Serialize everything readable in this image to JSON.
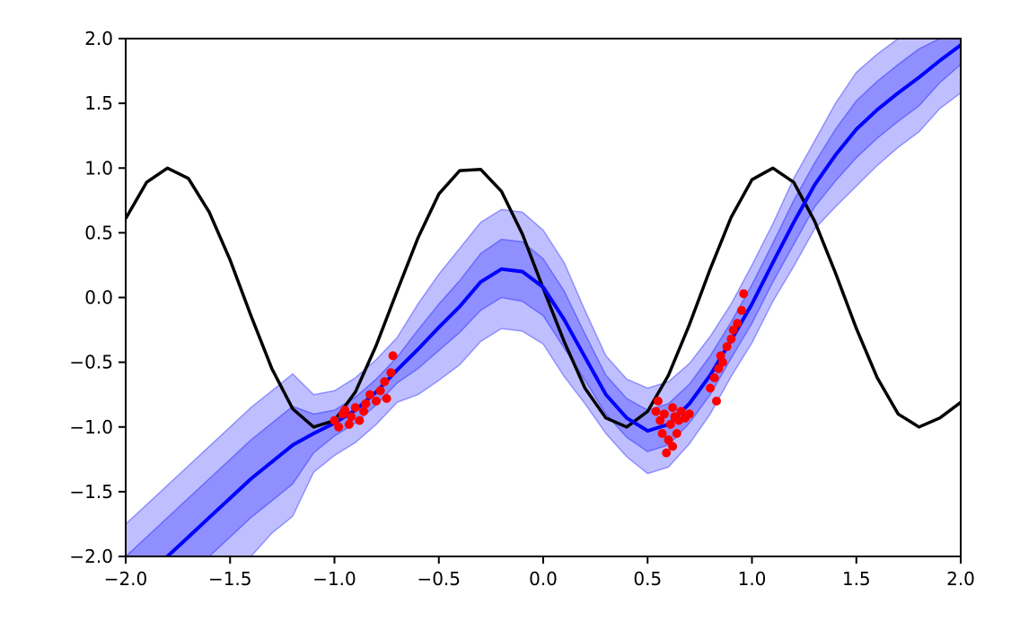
{
  "chart_data": {
    "type": "line",
    "title": "",
    "xlabel": "",
    "ylabel": "",
    "xlim": [
      -2.0,
      2.0
    ],
    "ylim": [
      -2.0,
      2.0
    ],
    "grid": false,
    "x_ticks": [
      -2.0,
      -1.5,
      -1.0,
      -0.5,
      0.0,
      0.5,
      1.0,
      1.5,
      2.0
    ],
    "y_ticks": [
      -2.0,
      -1.5,
      -1.0,
      -0.5,
      0.0,
      0.5,
      1.0,
      1.5,
      2.0
    ],
    "x_tick_labels": [
      "−2.0",
      "−1.5",
      "−1.0",
      "−0.5",
      "0.0",
      "0.5",
      "1.0",
      "1.5",
      "2.0"
    ],
    "y_tick_labels": [
      "−2.0",
      "−1.5",
      "−1.0",
      "−0.5",
      "0.0",
      "0.5",
      "1.0",
      "1.5",
      "2.0"
    ],
    "colors": {
      "true_function": "#000000",
      "predictive_mean": "#0000ff",
      "uncertainty_band": "#0000ff",
      "observations": "#ff0000"
    },
    "series": [
      {
        "kind": "line",
        "color": "#000000",
        "x": [
          -2.0,
          -1.9,
          -1.8,
          -1.7,
          -1.6,
          -1.5,
          -1.4,
          -1.3,
          -1.2,
          -1.1,
          -1.0,
          -0.9,
          -0.8,
          -0.7,
          -0.6,
          -0.5,
          -0.4,
          -0.3,
          -0.2,
          -0.1,
          0.0,
          0.1,
          0.2,
          0.3,
          0.4,
          0.5,
          0.6,
          0.7,
          0.8,
          0.9,
          1.0,
          1.1,
          1.2,
          1.3,
          1.4,
          1.5,
          1.6,
          1.7,
          1.8,
          1.9,
          2.0
        ],
        "y": [
          0.61,
          0.89,
          1.0,
          0.92,
          0.66,
          0.29,
          -0.14,
          -0.55,
          -0.86,
          -1.0,
          -0.95,
          -0.73,
          -0.37,
          0.05,
          0.46,
          0.8,
          0.98,
          0.99,
          0.82,
          0.49,
          0.07,
          -0.34,
          -0.7,
          -0.93,
          -1.0,
          -0.88,
          -0.6,
          -0.21,
          0.22,
          0.62,
          0.91,
          1.0,
          0.89,
          0.59,
          0.19,
          -0.24,
          -0.62,
          -0.9,
          -1.0,
          -0.93,
          -0.81
        ]
      },
      {
        "kind": "line",
        "color": "#0000ff",
        "x": [
          -2.0,
          -1.9,
          -1.8,
          -1.7,
          -1.6,
          -1.5,
          -1.4,
          -1.3,
          -1.2,
          -1.1,
          -1.0,
          -0.9,
          -0.8,
          -0.7,
          -0.6,
          -0.5,
          -0.4,
          -0.3,
          -0.2,
          -0.1,
          0.0,
          0.1,
          0.2,
          0.3,
          0.4,
          0.5,
          0.6,
          0.7,
          0.8,
          0.9,
          1.0,
          1.1,
          1.2,
          1.3,
          1.4,
          1.5,
          1.6,
          1.7,
          1.8,
          1.9,
          2.0
        ],
        "y": [
          -2.3,
          -2.15,
          -2.0,
          -1.85,
          -1.7,
          -1.55,
          -1.4,
          -1.27,
          -1.14,
          -1.05,
          -0.97,
          -0.87,
          -0.73,
          -0.56,
          -0.4,
          -0.23,
          -0.07,
          0.12,
          0.22,
          0.2,
          0.08,
          -0.17,
          -0.46,
          -0.75,
          -0.93,
          -1.03,
          -0.98,
          -0.82,
          -0.6,
          -0.33,
          -0.05,
          0.27,
          0.58,
          0.87,
          1.1,
          1.3,
          1.45,
          1.58,
          1.7,
          1.83,
          1.95
        ]
      }
    ],
    "band": {
      "x": [
        -2.0,
        -1.9,
        -1.8,
        -1.7,
        -1.6,
        -1.5,
        -1.4,
        -1.3,
        -1.2,
        -1.1,
        -1.0,
        -0.9,
        -0.8,
        -0.7,
        -0.6,
        -0.5,
        -0.4,
        -0.3,
        -0.2,
        -0.1,
        0.0,
        0.1,
        0.2,
        0.3,
        0.4,
        0.5,
        0.6,
        0.7,
        0.8,
        0.9,
        1.0,
        1.1,
        1.2,
        1.3,
        1.4,
        1.5,
        1.6,
        1.7,
        1.8,
        1.9,
        2.0
      ],
      "inner_upper": [
        -2.0,
        -1.85,
        -1.7,
        -1.55,
        -1.4,
        -1.25,
        -1.1,
        -0.97,
        -0.84,
        -0.9,
        -0.87,
        -0.77,
        -0.63,
        -0.46,
        -0.25,
        -0.05,
        0.13,
        0.34,
        0.45,
        0.43,
        0.3,
        0.05,
        -0.28,
        -0.6,
        -0.78,
        -0.87,
        -0.82,
        -0.67,
        -0.45,
        -0.19,
        0.1,
        0.42,
        0.75,
        1.04,
        1.3,
        1.52,
        1.67,
        1.8,
        1.92,
        2.0,
        2.0
      ],
      "inner_lower": [
        -2.0,
        -2.0,
        -2.0,
        -2.0,
        -2.0,
        -1.85,
        -1.7,
        -1.57,
        -1.44,
        -1.2,
        -1.07,
        -0.97,
        -0.83,
        -0.66,
        -0.55,
        -0.41,
        -0.27,
        -0.1,
        0.0,
        -0.03,
        -0.14,
        -0.39,
        -0.64,
        -0.9,
        -1.08,
        -1.19,
        -1.14,
        -0.97,
        -0.75,
        -0.47,
        -0.2,
        0.12,
        0.41,
        0.7,
        0.9,
        1.08,
        1.23,
        1.36,
        1.48,
        1.66,
        1.8
      ],
      "outer_upper": [
        -1.75,
        -1.6,
        -1.45,
        -1.3,
        -1.15,
        -1.0,
        -0.85,
        -0.72,
        -0.59,
        -0.75,
        -0.72,
        -0.62,
        -0.48,
        -0.31,
        -0.05,
        0.18,
        0.38,
        0.58,
        0.68,
        0.66,
        0.52,
        0.27,
        -0.1,
        -0.45,
        -0.63,
        -0.7,
        -0.65,
        -0.51,
        -0.3,
        -0.05,
        0.25,
        0.57,
        0.92,
        1.21,
        1.5,
        1.74,
        1.88,
        2.0,
        2.0,
        2.0,
        2.0
      ],
      "outer_lower": [
        -2.0,
        -2.0,
        -2.0,
        -2.0,
        -2.0,
        -2.0,
        -2.0,
        -1.82,
        -1.69,
        -1.35,
        -1.22,
        -1.12,
        -0.98,
        -0.81,
        -0.75,
        -0.64,
        -0.52,
        -0.34,
        -0.24,
        -0.26,
        -0.36,
        -0.61,
        -0.82,
        -1.05,
        -1.23,
        -1.36,
        -1.31,
        -1.13,
        -0.9,
        -0.61,
        -0.35,
        -0.03,
        0.24,
        0.53,
        0.7,
        0.86,
        1.02,
        1.16,
        1.28,
        1.46,
        1.58
      ]
    },
    "points": {
      "color": "#ff0000",
      "x": [
        -1.0,
        -0.98,
        -0.96,
        -0.95,
        -0.93,
        -0.92,
        -0.9,
        -0.88,
        -0.86,
        -0.85,
        -0.83,
        -0.8,
        -0.78,
        -0.76,
        -0.75,
        -0.73,
        -0.72,
        0.54,
        0.56,
        0.57,
        0.58,
        0.59,
        0.6,
        0.61,
        0.62,
        0.63,
        0.64,
        0.65,
        0.66,
        0.68,
        0.7,
        0.55,
        0.6,
        0.62,
        0.8,
        0.82,
        0.84,
        0.85,
        0.86,
        0.88,
        0.9,
        0.91,
        0.93,
        0.95,
        0.96,
        0.83
      ],
      "y": [
        -0.95,
        -1.0,
        -0.9,
        -0.87,
        -0.98,
        -0.92,
        -0.85,
        -0.95,
        -0.88,
        -0.82,
        -0.75,
        -0.8,
        -0.72,
        -0.65,
        -0.78,
        -0.58,
        -0.45,
        -0.88,
        -0.95,
        -1.05,
        -0.9,
        -1.2,
        -1.1,
        -0.98,
        -1.15,
        -0.92,
        -1.05,
        -0.95,
        -0.88,
        -0.93,
        -0.9,
        -0.8,
        -1.1,
        -0.85,
        -0.7,
        -0.62,
        -0.55,
        -0.45,
        -0.5,
        -0.38,
        -0.32,
        -0.25,
        -0.2,
        -0.1,
        0.03,
        -0.8
      ]
    }
  }
}
